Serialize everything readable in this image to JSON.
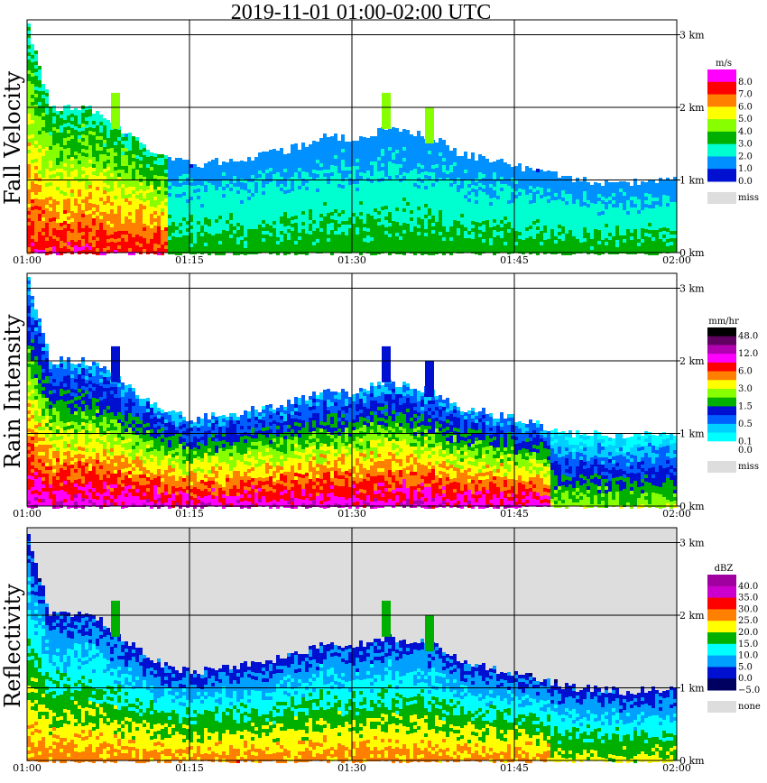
{
  "title": "2019-11-01   01:00-02:00 UTC",
  "panels": [
    {
      "label": "Fall Velocity",
      "unit": "m/s",
      "legend": [
        {
          "value": "8.0",
          "color": "#ff00ff"
        },
        {
          "value": "7.0",
          "color": "#ff0000"
        },
        {
          "value": "6.0",
          "color": "#ff8000"
        },
        {
          "value": "5.0",
          "color": "#ffff00"
        },
        {
          "value": "4.0",
          "color": "#88ff00"
        },
        {
          "value": "3.0",
          "color": "#00b000"
        },
        {
          "value": "2.0",
          "color": "#00ffd0"
        },
        {
          "value": "1.0",
          "color": "#0090ff"
        },
        {
          "value": "0.0",
          "color": "#0010d0"
        }
      ],
      "missing_label": "miss",
      "missing_color": "#dddddd"
    },
    {
      "label": "Rain Intensity",
      "unit": "mm/hr",
      "legend": [
        {
          "value": "48.0",
          "color": "#000000"
        },
        {
          "value": "",
          "color": "#600060"
        },
        {
          "value": "12.0",
          "color": "#b000b0"
        },
        {
          "value": "",
          "color": "#ff00ff"
        },
        {
          "value": "6.0",
          "color": "#ff0000"
        },
        {
          "value": "",
          "color": "#ff8000"
        },
        {
          "value": "3.0",
          "color": "#ffff00"
        },
        {
          "value": "",
          "color": "#88ff00"
        },
        {
          "value": "1.5",
          "color": "#00b000"
        },
        {
          "value": "",
          "color": "#0010d0"
        },
        {
          "value": "0.5",
          "color": "#0060ff"
        },
        {
          "value": "",
          "color": "#00d0ff"
        },
        {
          "value": "0.1",
          "color": "#00ffff"
        },
        {
          "value": "0.0",
          "color": "#ffffff"
        }
      ],
      "missing_label": "miss",
      "missing_color": "#dddddd"
    },
    {
      "label": "Reflectivity",
      "unit": "dBZ",
      "legend": [
        {
          "value": "40.0",
          "color": "#a000a0"
        },
        {
          "value": "35.0",
          "color": "#cc00cc"
        },
        {
          "value": "30.0",
          "color": "#ff0000"
        },
        {
          "value": "25.0",
          "color": "#ff8000"
        },
        {
          "value": "20.0",
          "color": "#ffff00"
        },
        {
          "value": "15.0",
          "color": "#00b000"
        },
        {
          "value": "10.0",
          "color": "#00ffff"
        },
        {
          "value": "5.0",
          "color": "#00a0ff"
        },
        {
          "value": "0.0",
          "color": "#0010d0"
        },
        {
          "value": "−5.0",
          "color": "#000060"
        }
      ],
      "missing_label": "none",
      "missing_color": "#dddddd"
    }
  ],
  "chart_data": {
    "type": "heatmap",
    "x_ticks": [
      "01:00",
      "01:15",
      "01:30",
      "01:45",
      "02:00"
    ],
    "y_ticks": [
      "0 km",
      "1 km",
      "2 km",
      "3 km"
    ],
    "xlim": [
      "01:00",
      "02:00"
    ],
    "ylim_km": [
      0,
      3.2
    ],
    "grid": true,
    "echo_top_km": [
      {
        "x": "01:00",
        "top": 3.1
      },
      {
        "x": "01:02",
        "top": 2.0
      },
      {
        "x": "01:05",
        "top": 2.0
      },
      {
        "x": "01:07",
        "top": 1.9
      },
      {
        "x": "01:09",
        "top": 1.65
      },
      {
        "x": "01:12",
        "top": 1.35
      },
      {
        "x": "01:15",
        "top": 1.2
      },
      {
        "x": "01:20",
        "top": 1.3
      },
      {
        "x": "01:25",
        "top": 1.45
      },
      {
        "x": "01:27",
        "top": 1.6
      },
      {
        "x": "01:30",
        "top": 1.55
      },
      {
        "x": "01:33",
        "top": 1.7
      },
      {
        "x": "01:37",
        "top": 1.6
      },
      {
        "x": "01:40",
        "top": 1.35
      },
      {
        "x": "01:45",
        "top": 1.2
      },
      {
        "x": "01:50",
        "top": 1.0
      },
      {
        "x": "01:55",
        "top": 0.95
      },
      {
        "x": "02:00",
        "top": 1.0
      }
    ],
    "cells": [
      {
        "x": "01:08",
        "top": 2.2
      },
      {
        "x": "01:33",
        "top": 2.2
      },
      {
        "x": "01:37",
        "top": 2.0
      }
    ]
  }
}
